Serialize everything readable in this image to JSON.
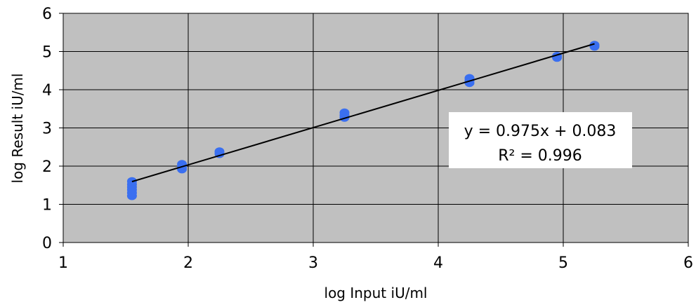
{
  "chart_data": {
    "type": "scatter",
    "xlabel": "log Input iU/ml",
    "ylabel": "log Result iU/ml",
    "xlim": [
      1,
      6
    ],
    "ylim": [
      0,
      6
    ],
    "xticks": [
      "1",
      "2",
      "3",
      "4",
      "5",
      "6"
    ],
    "yticks": [
      "0",
      "1",
      "2",
      "3",
      "4",
      "5",
      "6"
    ],
    "grid": true,
    "plot_background": "#c0c0c0",
    "marker_color": "#3a6ff0",
    "trendline_color": "#000000",
    "points": [
      {
        "x": 1.55,
        "y": 1.22
      },
      {
        "x": 1.55,
        "y": 1.3
      },
      {
        "x": 1.55,
        "y": 1.38
      },
      {
        "x": 1.55,
        "y": 1.45
      },
      {
        "x": 1.55,
        "y": 1.52
      },
      {
        "x": 1.55,
        "y": 1.6
      },
      {
        "x": 1.95,
        "y": 1.92
      },
      {
        "x": 1.95,
        "y": 1.98
      },
      {
        "x": 1.95,
        "y": 2.05
      },
      {
        "x": 2.25,
        "y": 2.32
      },
      {
        "x": 2.25,
        "y": 2.38
      },
      {
        "x": 3.25,
        "y": 3.27
      },
      {
        "x": 3.25,
        "y": 3.33
      },
      {
        "x": 3.25,
        "y": 3.4
      },
      {
        "x": 4.25,
        "y": 4.18
      },
      {
        "x": 4.25,
        "y": 4.24
      },
      {
        "x": 4.25,
        "y": 4.3
      },
      {
        "x": 4.95,
        "y": 4.84
      },
      {
        "x": 4.95,
        "y": 4.88
      },
      {
        "x": 5.25,
        "y": 5.13
      },
      {
        "x": 5.25,
        "y": 5.17
      }
    ],
    "trendline": {
      "slope": 0.975,
      "intercept": 0.083,
      "x_range": [
        1.55,
        5.25
      ],
      "equation": "y = 0.975x + 0.083",
      "r_squared": "R² = 0.996"
    }
  }
}
